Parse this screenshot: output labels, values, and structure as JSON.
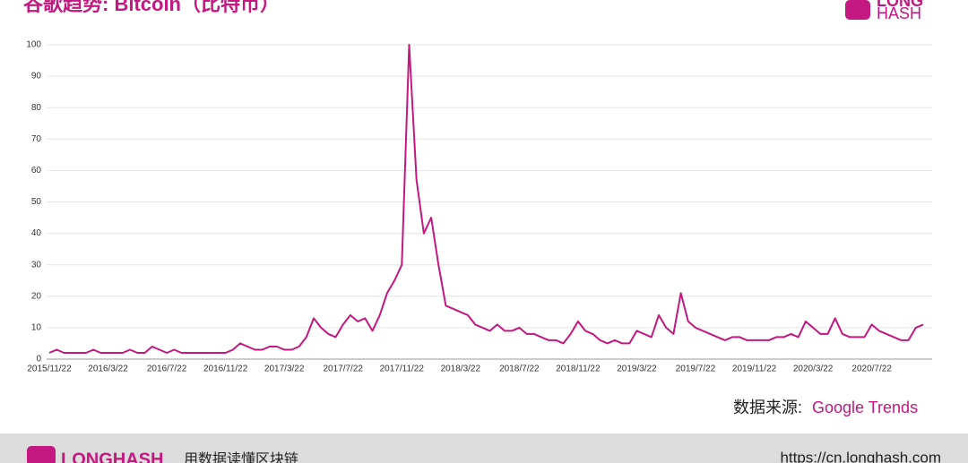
{
  "chart_data": {
    "type": "line",
    "title": "谷歌趋势: Bitcoin（比特币）",
    "categories": [
      "2015/11/22",
      null,
      null,
      null,
      null,
      null,
      null,
      null,
      "2016/3/22",
      null,
      null,
      null,
      null,
      null,
      null,
      null,
      "2016/7/22",
      null,
      null,
      null,
      null,
      null,
      null,
      null,
      "2016/11/22",
      null,
      null,
      null,
      null,
      null,
      null,
      null,
      "2017/3/22",
      null,
      null,
      null,
      null,
      null,
      null,
      null,
      "2017/7/22",
      null,
      null,
      null,
      null,
      null,
      null,
      null,
      "2017/11/22",
      null,
      null,
      null,
      null,
      null,
      null,
      null,
      "2018/3/22",
      null,
      null,
      null,
      null,
      null,
      null,
      null,
      "2018/7/22",
      null,
      null,
      null,
      null,
      null,
      null,
      null,
      "2018/11/22",
      null,
      null,
      null,
      null,
      null,
      null,
      null,
      "2019/3/22",
      null,
      null,
      null,
      null,
      null,
      null,
      null,
      "2019/7/22",
      null,
      null,
      null,
      null,
      null,
      null,
      null,
      "2019/11/22",
      null,
      null,
      null,
      null,
      null,
      null,
      null,
      "2020/3/22",
      null,
      null,
      null,
      null,
      null,
      null,
      null,
      "2020/7/22",
      null,
      null,
      null,
      null,
      null,
      null,
      null
    ],
    "series": [
      {
        "name": "Bitcoin",
        "color": "#c2187f",
        "values": [
          2,
          3,
          2,
          2,
          2,
          2,
          3,
          2,
          2,
          2,
          2,
          3,
          2,
          2,
          4,
          3,
          2,
          3,
          2,
          2,
          2,
          2,
          2,
          2,
          2,
          3,
          5,
          4,
          3,
          3,
          4,
          4,
          3,
          3,
          4,
          7,
          13,
          10,
          8,
          7,
          11,
          14,
          12,
          13,
          9,
          14,
          21,
          25,
          30,
          100,
          57,
          40,
          45,
          30,
          17,
          16,
          15,
          14,
          11,
          10,
          9,
          11,
          9,
          9,
          10,
          8,
          8,
          7,
          6,
          6,
          5,
          8,
          12,
          9,
          8,
          6,
          5,
          6,
          5,
          5,
          9,
          8,
          7,
          14,
          10,
          8,
          21,
          12,
          10,
          9,
          8,
          7,
          6,
          7,
          7,
          6,
          6,
          6,
          6,
          7,
          7,
          8,
          7,
          12,
          10,
          8,
          8,
          13,
          8,
          7,
          7,
          7,
          11,
          9,
          8,
          7,
          6,
          6,
          10,
          11
        ]
      }
    ],
    "ylim": [
      0,
      100
    ],
    "yticks": [
      0,
      10,
      20,
      30,
      40,
      50,
      60,
      70,
      80,
      90,
      100
    ],
    "grid": true
  },
  "source": {
    "label": "数据来源:",
    "name": "Google Trends"
  },
  "logo": {
    "line1": "LONG",
    "line2": "HASH"
  },
  "footer": {
    "brand": "LONGHASH",
    "slogan": "用数据读懂区块链",
    "url": "https://cn.longhash.com"
  }
}
